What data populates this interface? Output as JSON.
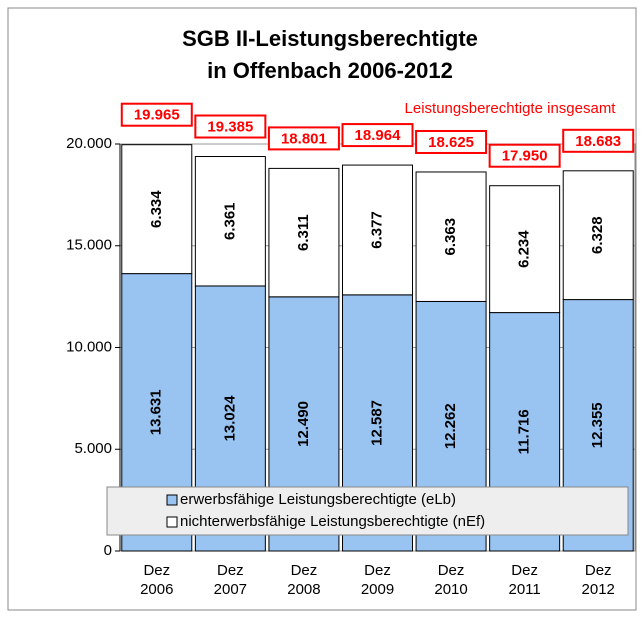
{
  "chart_data": {
    "type": "stacked_bar",
    "title": [
      "SGB II-Leistungsberechtigte",
      "in Offenbach 2006-2012"
    ],
    "annotation": "Leistungsberechtigte insgesamt",
    "categories": [
      "Dez 2006",
      "Dez 2007",
      "Dez 2008",
      "Dez 2009",
      "Dez 2010",
      "Dez 2011",
      "Dez 2012"
    ],
    "series": [
      {
        "name": "erwerbsfähige Leistungsberechtigte (eLb)",
        "color": "#99c4f2",
        "values": [
          13631,
          13024,
          12490,
          12587,
          12262,
          11716,
          12355
        ],
        "value_labels": [
          "13.631",
          "13.024",
          "12.490",
          "12.587",
          "12.262",
          "11.716",
          "12.355"
        ]
      },
      {
        "name": "nichterwerbsfähige Leistungsberechtigte (nEf)",
        "color": "#ffffff",
        "values": [
          6334,
          6361,
          6311,
          6377,
          6363,
          6234,
          6328
        ],
        "value_labels": [
          "6.334",
          "6.361",
          "6.311",
          "6.377",
          "6.363",
          "6.234",
          "6.328"
        ]
      }
    ],
    "totals": {
      "values": [
        19965,
        19385,
        18801,
        18964,
        18625,
        17950,
        18683
      ],
      "value_labels": [
        "19.965",
        "19.385",
        "18.801",
        "18.964",
        "18.625",
        "17.950",
        "18.683"
      ],
      "color": "#ff0000"
    },
    "ylim": [
      0,
      20000
    ],
    "yticks": [
      0,
      {
        "value": 5000,
        "label": "5.000"
      },
      {
        "value": 10000,
        "label": "10.000"
      },
      {
        "value": 15000,
        "label": "15.000"
      },
      {
        "value": 20000,
        "label": "20.000"
      }
    ],
    "grid": true
  }
}
